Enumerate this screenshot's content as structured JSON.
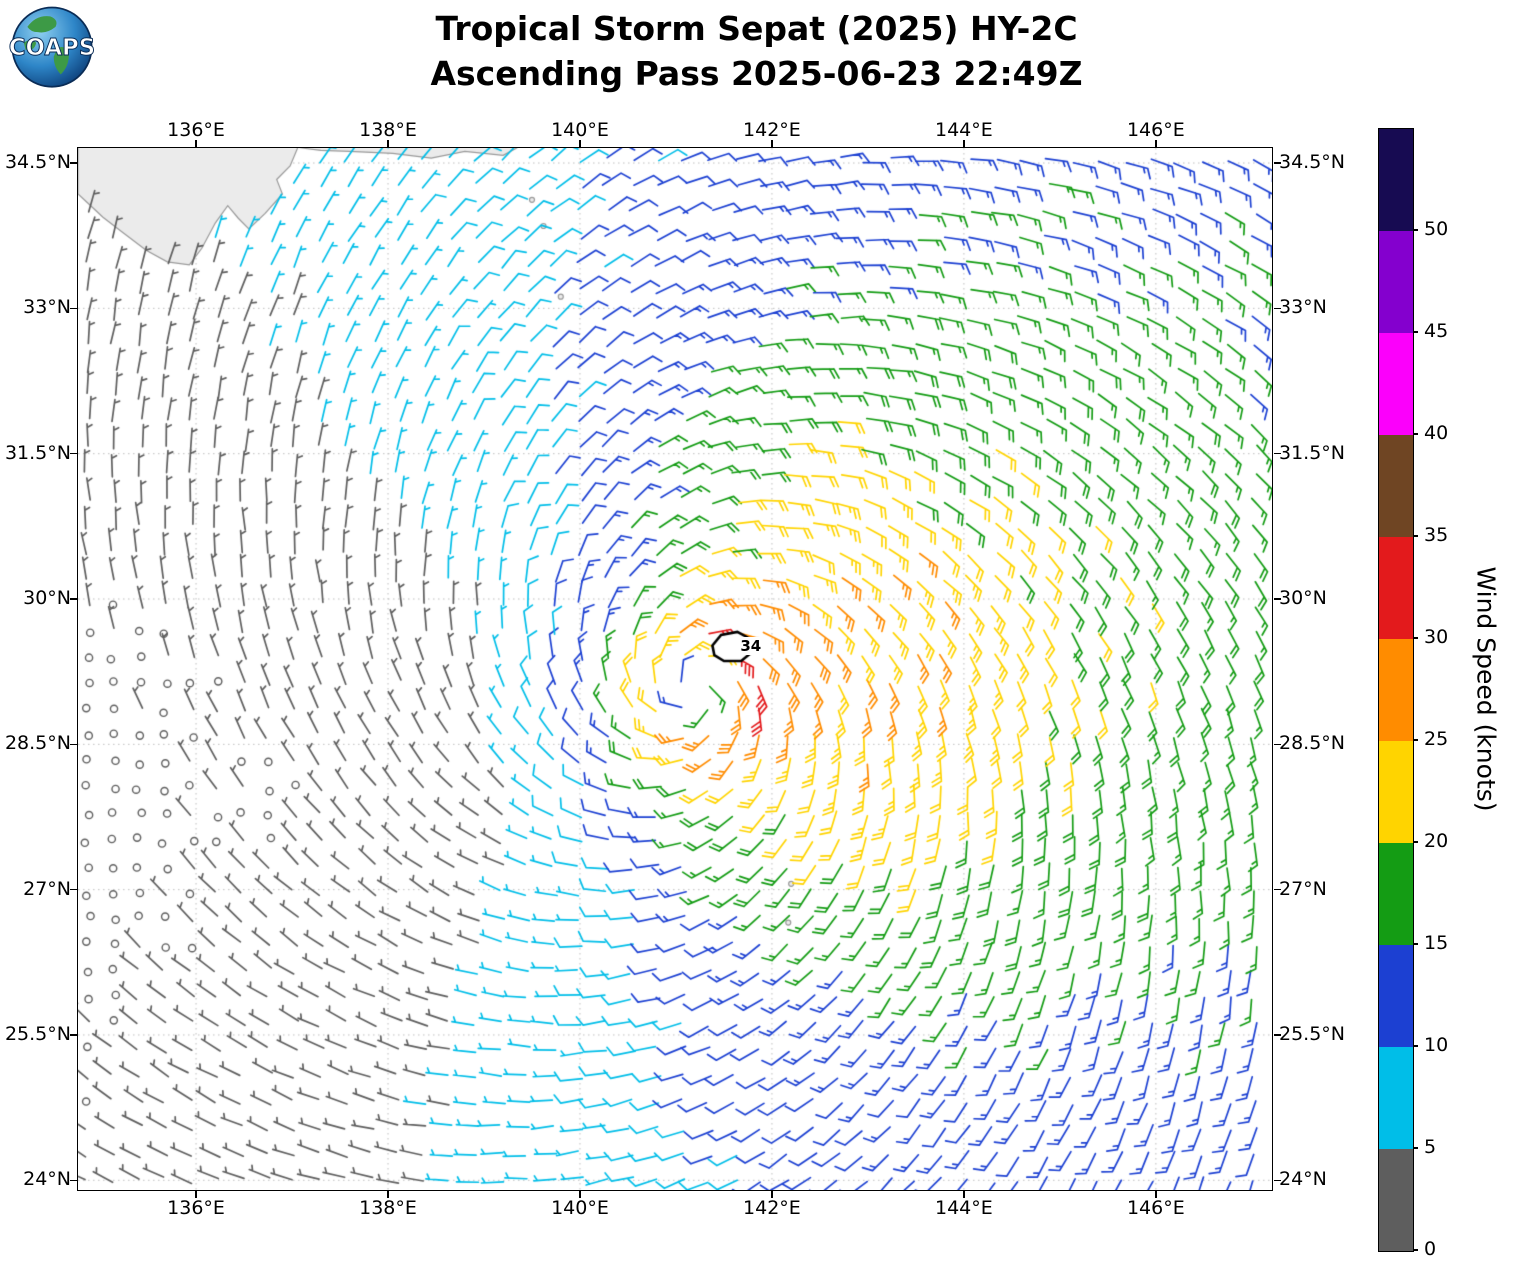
{
  "logo": {
    "text": "COAPS"
  },
  "title": {
    "line1": "Tropical Storm Sepat (2025) HY-2C",
    "line2": "Ascending Pass 2025-06-23 22:49Z"
  },
  "chart_data": {
    "type": "wind_barb_map",
    "title": "Tropical Storm Sepat (2025) HY-2C",
    "subtitle": "Ascending Pass 2025-06-23 22:49Z",
    "storm_name": "Sepat",
    "storm_year": "2025",
    "satellite": "HY-2C",
    "pass_type": "Ascending",
    "pass_time_utc": "2025-06-23 22:49Z",
    "extent": {
      "lon_min": 134.77,
      "lon_max": 147.21,
      "lat_min": 23.9,
      "lat_max": 34.655
    },
    "x_ticks": [
      {
        "value": 136,
        "label": "136°E"
      },
      {
        "value": 138,
        "label": "138°E"
      },
      {
        "value": 140,
        "label": "140°E"
      },
      {
        "value": 142,
        "label": "142°E"
      },
      {
        "value": 144,
        "label": "144°E"
      },
      {
        "value": 146,
        "label": "146°E"
      }
    ],
    "y_ticks": [
      {
        "value": 34.5,
        "label": "34.5°N"
      },
      {
        "value": 33,
        "label": "33°N"
      },
      {
        "value": 31.5,
        "label": "31.5°N"
      },
      {
        "value": 30,
        "label": "30°N"
      },
      {
        "value": 28.5,
        "label": "28.5°N"
      },
      {
        "value": 27,
        "label": "27°N"
      },
      {
        "value": 25.5,
        "label": "25.5°N"
      },
      {
        "value": 24,
        "label": "24°N"
      }
    ],
    "grid_lines": "dotted",
    "colorbar": {
      "label": "Wind Speed (knots)",
      "tick_values": [
        0,
        5,
        10,
        15,
        20,
        25,
        30,
        35,
        40,
        45,
        50
      ],
      "bin_edges": [
        0,
        5,
        10,
        15,
        20,
        25,
        30,
        35,
        40,
        45,
        50,
        55
      ],
      "colors": [
        "#5E5E5E",
        "#00BEE8",
        "#1C40D2",
        "#149C14",
        "#FFD400",
        "#FF8C00",
        "#E31A1C",
        "#6F4523",
        "#FB00FB",
        "#8400CE",
        "#170B52"
      ]
    },
    "storm": {
      "label": "34",
      "center_lon": 141.2,
      "center_lat": 29.05,
      "marker_lon": 141.58,
      "marker_lat": 29.5,
      "label_lon": 141.78,
      "label_lat": 29.52,
      "marker_polygon": [
        [
          -0.2,
          0.02
        ],
        [
          -0.11,
          0.13
        ],
        [
          0.06,
          0.16
        ],
        [
          0.19,
          0.09
        ],
        [
          0.21,
          -0.05
        ],
        [
          0.1,
          -0.14
        ],
        [
          -0.08,
          -0.14
        ],
        [
          -0.18,
          -0.08
        ]
      ]
    },
    "wind_model": {
      "description": "Cyclonic (counterclockwise) scatterometer wind field around storm center; strongest (30-34 kt, red) just east-northeast of center, broad 15-25 kt (green/yellow) flow east of storm, near-calm (gray, circles) far west-southwest",
      "vmax_kt": 33,
      "rmax_deg": 0.55,
      "inner_exp": 0.65,
      "outer_exp": 0.45,
      "inflow_deg": 22,
      "asym_base": 0.85,
      "asym_amp": 0.65,
      "asym_dir_deg": 10,
      "grid_spacing_deg": 0.27,
      "calm_threshold_kt": 2.5,
      "barb_half_kt": 5,
      "barb_full_kt": 10
    },
    "land": {
      "fill": "#EBEBEB",
      "stroke": "#999999",
      "polygons": [
        [
          [
            134.77,
            34.66
          ],
          [
            137.06,
            34.66
          ],
          [
            136.98,
            34.47
          ],
          [
            136.84,
            34.33
          ],
          [
            136.9,
            34.18
          ],
          [
            136.72,
            33.98
          ],
          [
            136.55,
            33.82
          ],
          [
            136.44,
            33.93
          ],
          [
            136.33,
            34.06
          ],
          [
            136.2,
            33.88
          ],
          [
            136.06,
            33.62
          ],
          [
            135.93,
            33.45
          ],
          [
            135.7,
            33.48
          ],
          [
            135.48,
            33.6
          ],
          [
            135.24,
            33.78
          ],
          [
            135.03,
            33.94
          ],
          [
            134.88,
            34.08
          ],
          [
            134.77,
            34.18
          ]
        ],
        [
          [
            137.06,
            34.66
          ],
          [
            139.35,
            34.66
          ],
          [
            139.2,
            34.58
          ],
          [
            138.8,
            34.62
          ],
          [
            138.45,
            34.55
          ],
          [
            138.05,
            34.6
          ],
          [
            137.6,
            34.62
          ],
          [
            137.3,
            34.63
          ]
        ]
      ],
      "islands": [
        [
          139.5,
          34.12
        ],
        [
          139.62,
          33.85
        ],
        [
          139.8,
          33.12
        ],
        [
          142.2,
          27.06
        ],
        [
          142.17,
          26.66
        ]
      ]
    }
  }
}
